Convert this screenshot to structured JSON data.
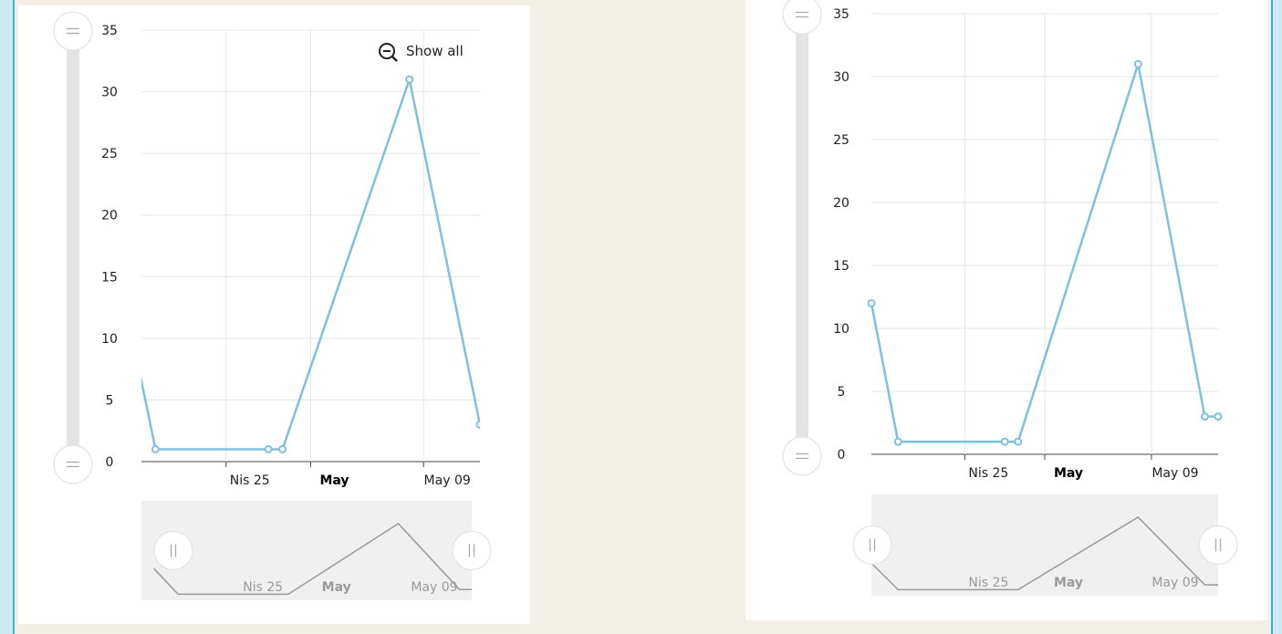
{
  "chart_data": [
    {
      "type": "line",
      "name": "left-chart",
      "xlabel": "",
      "ylabel": "",
      "ylim": [
        0,
        35
      ],
      "yticks": [
        0,
        5,
        10,
        15,
        20,
        25,
        30,
        35
      ],
      "xlim": [
        "2016-04-19",
        "2016-05-13"
      ],
      "x_tick_labels": [
        {
          "date": "2016-04-25",
          "label": "Nis 25",
          "bold": false
        },
        {
          "date": "2016-05-01",
          "label": "May",
          "bold": true
        },
        {
          "date": "2016-05-09",
          "label": "May 09",
          "bold": false
        }
      ],
      "grid": true,
      "zoom_button": {
        "label": "Show all",
        "icon": "zoom-out-icon"
      },
      "series": [
        {
          "color": "#7ec0dd",
          "points": [
            {
              "x": "2016-04-18",
              "y": 12
            },
            {
              "x": "2016-04-20",
              "y": 1
            },
            {
              "x": "2016-04-28",
              "y": 1
            },
            {
              "x": "2016-04-29",
              "y": 1
            },
            {
              "x": "2016-05-08",
              "y": 31
            },
            {
              "x": "2016-05-13",
              "y": 3
            },
            {
              "x": "2016-05-14",
              "y": 3
            }
          ]
        }
      ],
      "navigator": {
        "labels": [
          {
            "date": "2016-04-25",
            "label": "Nis 25",
            "bold": false
          },
          {
            "date": "2016-05-01",
            "label": "May",
            "bold": true
          },
          {
            "date": "2016-05-09",
            "label": "May 09",
            "bold": false
          }
        ],
        "selection": [
          "2016-04-20",
          "2016-05-13"
        ]
      }
    },
    {
      "type": "line",
      "name": "right-chart",
      "xlabel": "",
      "ylabel": "",
      "ylim": [
        0,
        35
      ],
      "yticks": [
        0,
        5,
        10,
        15,
        20,
        25,
        30,
        35
      ],
      "xlim": [
        "2016-04-18",
        "2016-05-14"
      ],
      "x_tick_labels": [
        {
          "date": "2016-04-25",
          "label": "Nis 25",
          "bold": false
        },
        {
          "date": "2016-05-01",
          "label": "May",
          "bold": true
        },
        {
          "date": "2016-05-09",
          "label": "May 09",
          "bold": false
        }
      ],
      "grid": true,
      "series": [
        {
          "color": "#7ec0dd",
          "points": [
            {
              "x": "2016-04-18",
              "y": 12
            },
            {
              "x": "2016-04-20",
              "y": 1
            },
            {
              "x": "2016-04-28",
              "y": 1
            },
            {
              "x": "2016-04-29",
              "y": 1
            },
            {
              "x": "2016-05-08",
              "y": 31
            },
            {
              "x": "2016-05-13",
              "y": 3
            },
            {
              "x": "2016-05-14",
              "y": 3
            }
          ]
        }
      ],
      "navigator": {
        "labels": [
          {
            "date": "2016-04-25",
            "label": "Nis 25",
            "bold": false
          },
          {
            "date": "2016-05-01",
            "label": "May",
            "bold": true
          },
          {
            "date": "2016-05-09",
            "label": "May 09",
            "bold": false
          }
        ],
        "selection": [
          "2016-04-18",
          "2016-05-14"
        ]
      }
    }
  ]
}
